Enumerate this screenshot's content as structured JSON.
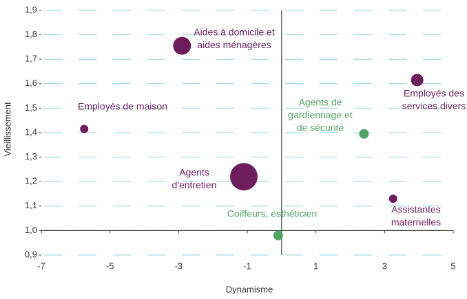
{
  "chart_data": {
    "type": "scatter",
    "x_label": "Dynamisme",
    "y_label": "Vieillissement",
    "x": [
      -2.9,
      -5.75,
      -1.1,
      -0.1,
      2.4,
      3.95,
      3.25
    ],
    "values": [
      1.755,
      1.415,
      1.22,
      0.98,
      1.395,
      1.615,
      1.13
    ],
    "sizes": [
      169,
      36,
      400,
      49,
      49,
      81,
      36
    ],
    "colors": [
      "#6d1d5c",
      "#6d1d5c",
      "#6d1d5c",
      "#4fa466",
      "#4fa466",
      "#6d1d5c",
      "#6d1d5c"
    ],
    "labels": [
      [
        "Aides à domicile et",
        "aides ménagères"
      ],
      [
        "Employés de maison"
      ],
      [
        "Agents",
        "d'entretien"
      ],
      [
        "Coiffeurs, esthéticien"
      ],
      [
        "Agents de",
        "gardiennage et",
        "de sécurité"
      ],
      [
        "Employés des",
        "services divers"
      ],
      [
        "Assistantes",
        "maternelles"
      ]
    ],
    "xlim": [
      -7,
      5
    ],
    "xticks": [
      -7,
      -5,
      -3,
      -1,
      1,
      3,
      5
    ],
    "ylim": [
      0.9,
      1.9
    ],
    "yticks": [
      {
        "value": 0.9,
        "label": "0,9"
      },
      {
        "value": 1.0,
        "label": "1,0"
      },
      {
        "value": 1.1,
        "label": "1,1"
      },
      {
        "value": 1.2,
        "label": "1,2"
      },
      {
        "value": 1.3,
        "label": "1,3"
      },
      {
        "value": 1.4,
        "label": "1,4"
      },
      {
        "value": 1.5,
        "label": "1,5"
      },
      {
        "value": 1.6,
        "label": "1,6"
      },
      {
        "value": 1.7,
        "label": "1,7"
      },
      {
        "value": 1.8,
        "label": "1,8"
      },
      {
        "value": 1.9,
        "label": "1,9"
      }
    ],
    "x_axis_crossing": 1.0,
    "y_axis_crossing": 0,
    "grid": true,
    "grid_color": "#8fd3e0"
  }
}
